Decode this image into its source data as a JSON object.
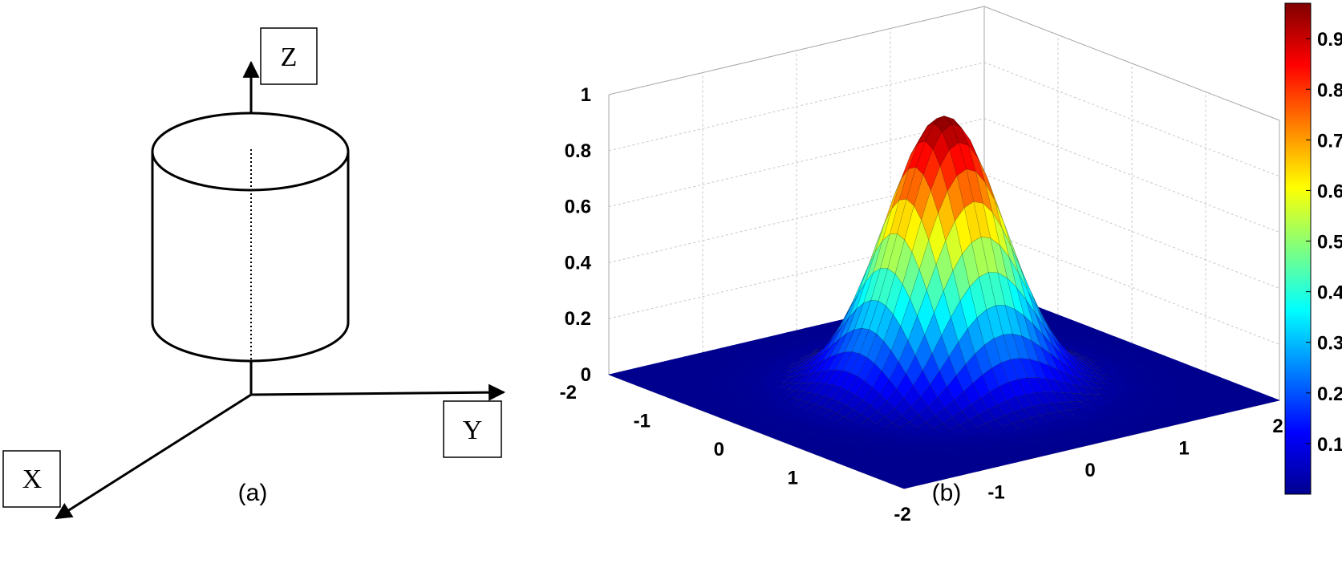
{
  "panel_a": {
    "caption": "(a)",
    "axis_labels": {
      "z": "Z",
      "y": "Y",
      "x": "X"
    }
  },
  "panel_b": {
    "caption": "(b)"
  },
  "chart_data": {
    "type": "surface",
    "function": "gaussian",
    "title": "",
    "xlabel": "",
    "ylabel": "",
    "zlabel": "",
    "x_range": [
      -2,
      2
    ],
    "y_range": [
      -2,
      2
    ],
    "zlim": [
      0,
      1
    ],
    "peak": {
      "x": 0,
      "y": 0,
      "z": 0.97
    },
    "sigma": 0.5,
    "x_ticks": [
      "-2",
      "-1",
      "0",
      "1"
    ],
    "y_ticks": [
      "-2",
      "-1",
      "0",
      "1",
      "2"
    ],
    "z_ticks": [
      "0",
      "0.2",
      "0.4",
      "0.6",
      "0.8",
      "1"
    ],
    "grid": true,
    "colormap": "jet",
    "colorbar": {
      "range": [
        0,
        0.97
      ],
      "ticks": [
        "0.1",
        "0.2",
        "0.3",
        "0.4",
        "0.5",
        "0.6",
        "0.7",
        "0.8",
        "0.9"
      ]
    }
  }
}
